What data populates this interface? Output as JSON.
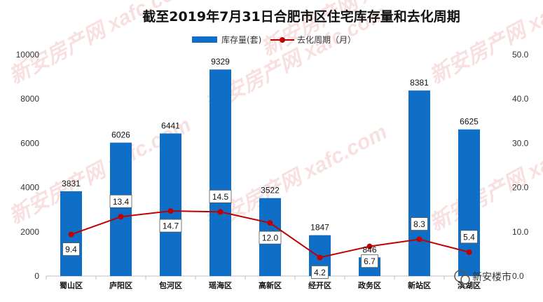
{
  "chart_data": {
    "type": "bar",
    "title": "截至2019年7月31日合肥市区住宅库存量和去化周期",
    "categories": [
      "蜀山区",
      "庐阳区",
      "包河区",
      "瑶海区",
      "高新区",
      "经开区",
      "政务区",
      "新站区",
      "滨湖区"
    ],
    "series": [
      {
        "name": "库存量(套)",
        "type": "bar",
        "axis": "left",
        "values": [
          3831,
          6026,
          6441,
          9329,
          3522,
          1847,
          846,
          8381,
          6625
        ]
      },
      {
        "name": "去化周期（月）",
        "type": "line",
        "axis": "right",
        "values": [
          9.4,
          13.4,
          14.7,
          14.5,
          12.0,
          4.2,
          6.7,
          8.3,
          5.4
        ]
      }
    ],
    "ylim": [
      0,
      10000
    ],
    "y_ticks": [
      0,
      2000,
      4000,
      6000,
      8000,
      10000
    ],
    "y2lim": [
      0,
      50
    ],
    "y2_ticks": [
      "0.0",
      "10.0",
      "20.0",
      "30.0",
      "40.0",
      "50.0"
    ],
    "legend": "top-center",
    "grid": false,
    "colors": {
      "bar": "#0f6fc6",
      "line": "#c00000"
    }
  },
  "watermark": "新安房产网 xafc.com",
  "brand": "新安楼市"
}
